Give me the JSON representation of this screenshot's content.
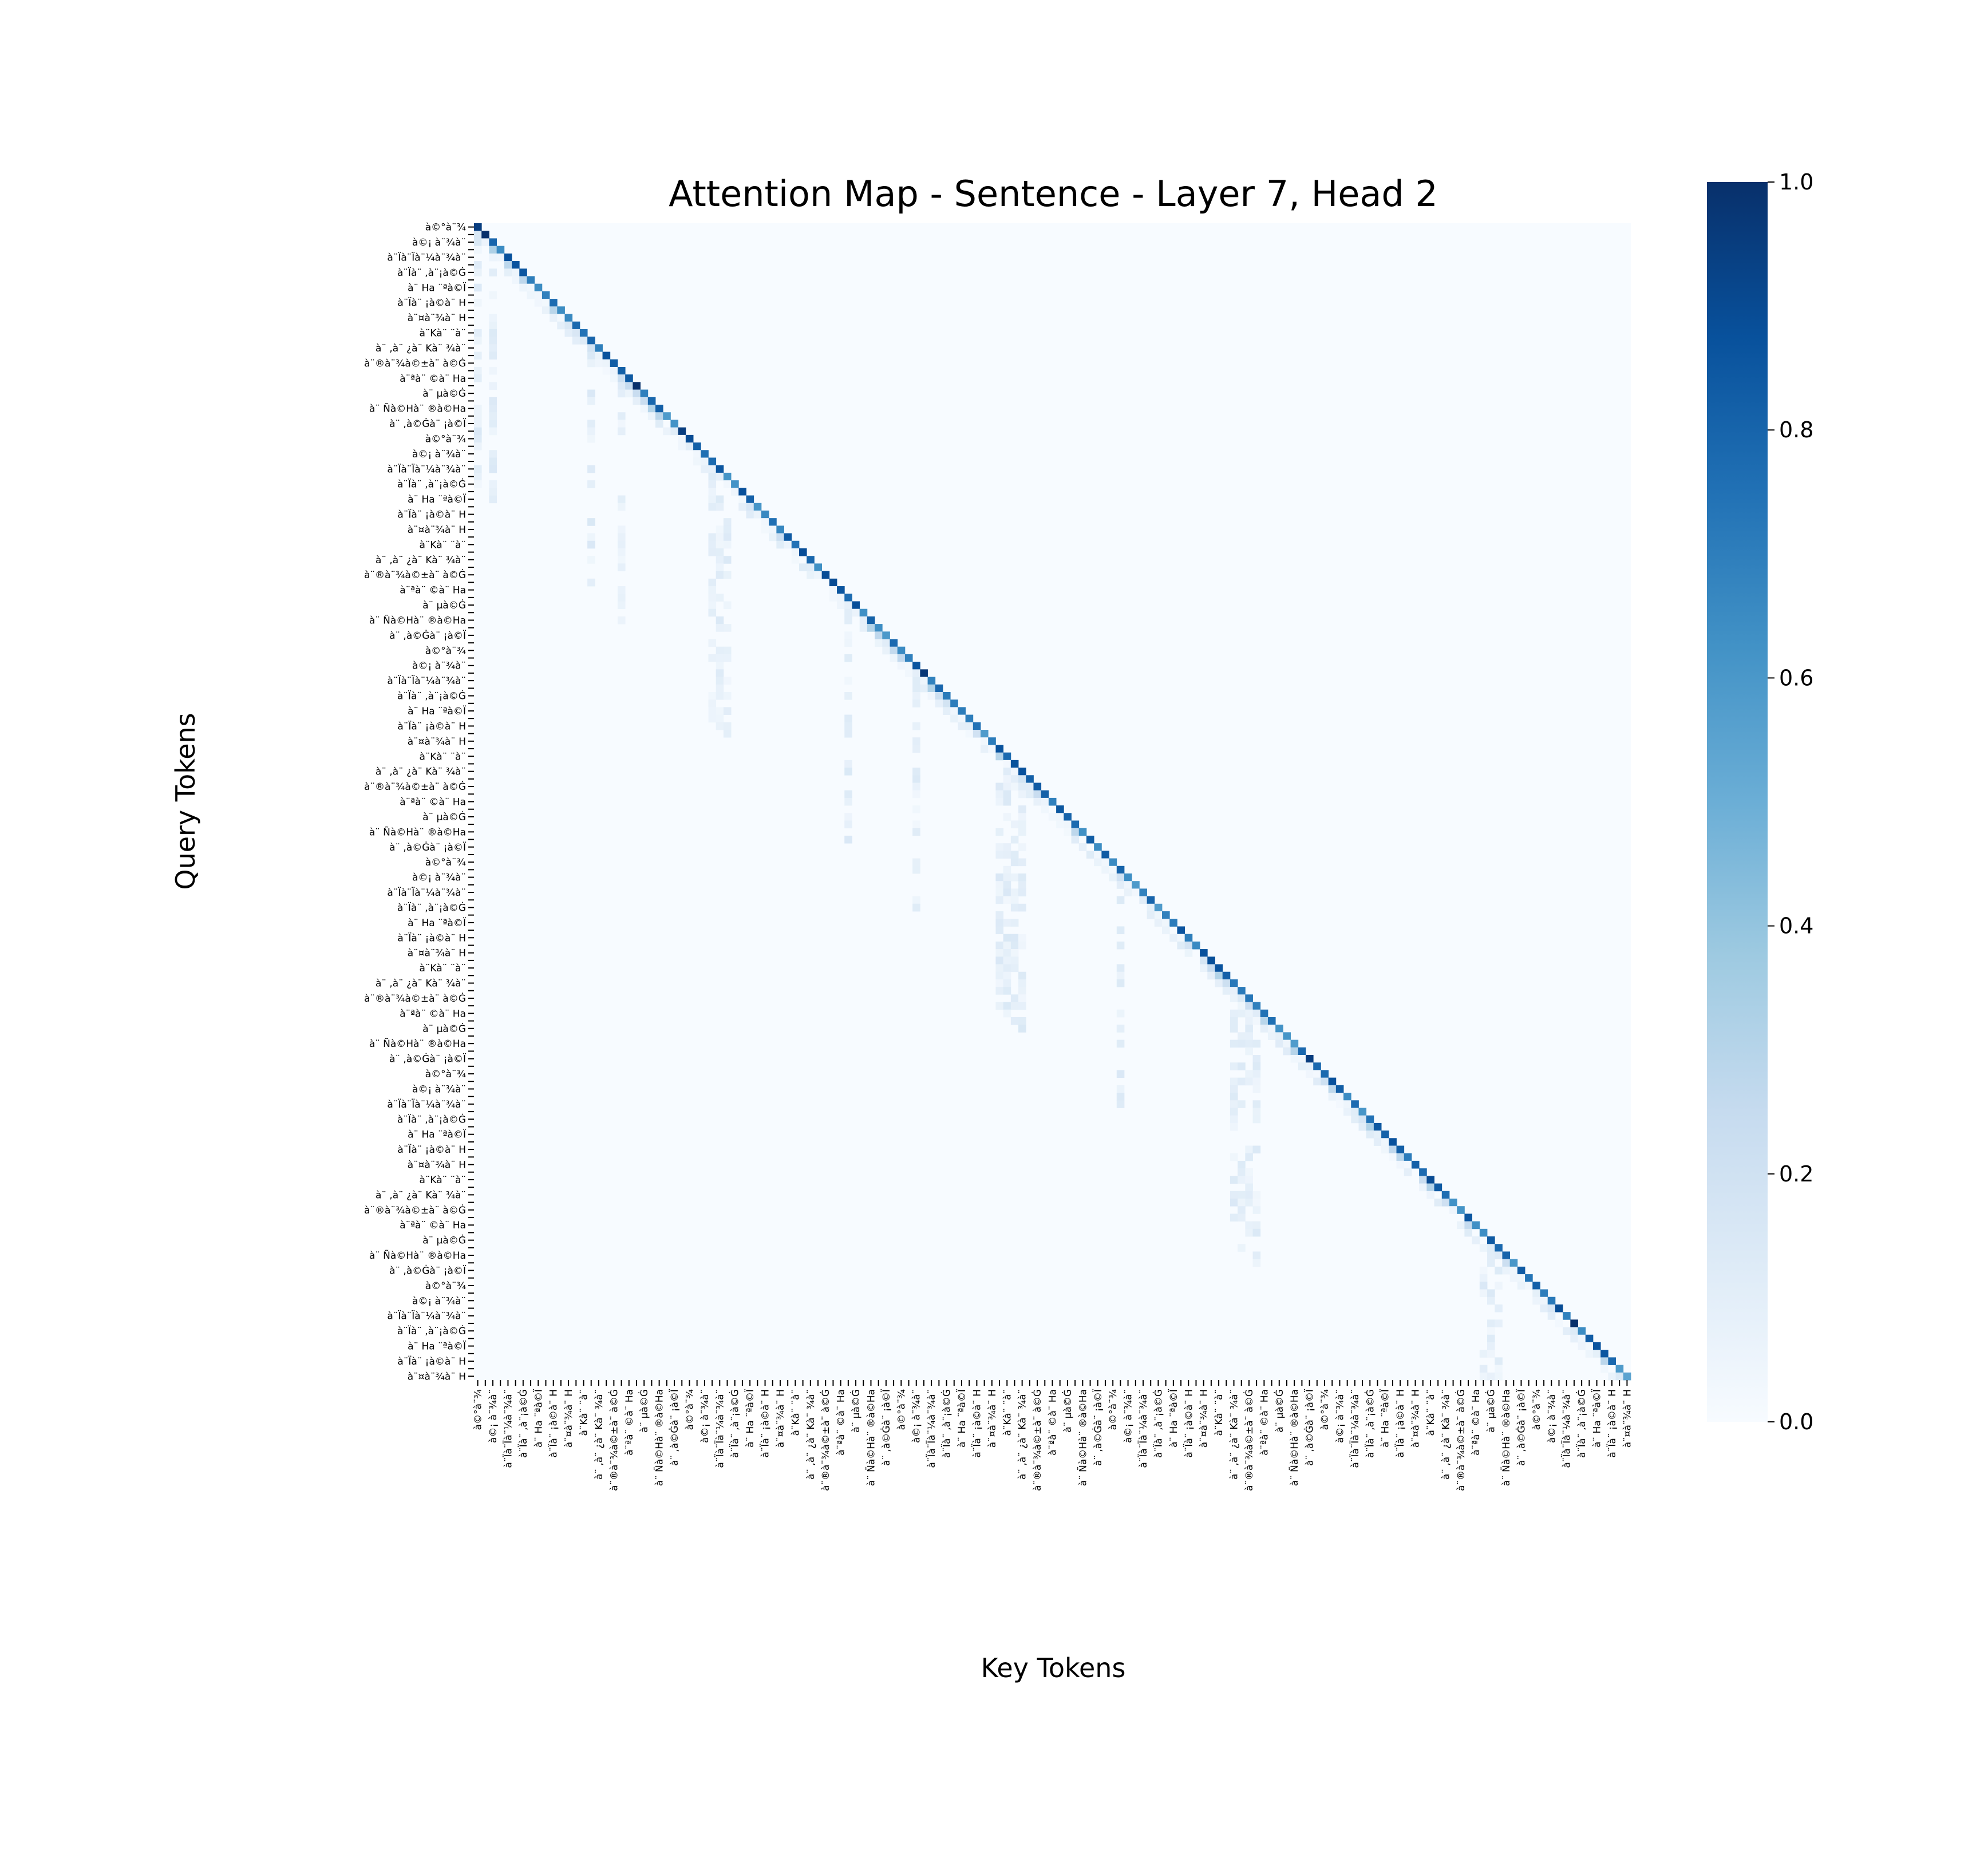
{
  "chart_data": {
    "type": "heatmap",
    "title": "Attention Map - Sentence - Layer 7, Head 2",
    "xlabel": "Key Tokens",
    "ylabel": "Query Tokens",
    "n_tokens": 153,
    "structure": "lower-triangular causal attention; strongest weights on the main diagonal; near-zero above the diagonal",
    "color_range": [
      0.0,
      1.0
    ],
    "colormap": "Blues",
    "colorbar_ticks": [
      "0.0",
      "0.2",
      "0.4",
      "0.6",
      "0.8",
      "1.0"
    ],
    "colorbar_tick_values": [
      0.0,
      0.2,
      0.4,
      0.6,
      0.8,
      1.0
    ],
    "tick_label_snippets": [
      "à©°à¨¾",
      "à¨µà¨¾ ¿à©±à¨ ",
      "à©¡ à¨¾à¨",
      "à¨ ,à©ģà¨¤à©°à¨¾",
      "à¨Ïà¨Ïà¨¼à¨¾à¨",
      "à¨ªà©¡à¨°à¨¤à©Ġà¨",
      "à¨Ïà¨ ,à¨¡à©Ġ",
      "à¨Ïà¨ ,à¨ ¡à©Ï",
      "à¨ Ha ¨ªà©Ï",
      "à¨¾à¨Ïà¨ Haà¨ à©Ġ",
      "à¨Ïà¨ ¡à©à¨ H",
      "à¨Ïà¨ Ïà¨ ¡à©Ï",
      "à¨¤à¨¾à¨ H",
      "à¨ªà¨¾à¨ ¡à©Ġ",
      "à¨Kà¨ ¨à¨",
      "à¨ ,à¨¾à¨ ¡à©Ï",
      "à¨ ,à¨ ¿à¨ Kà¨ ¾à¨",
      "à¨Ïà¨Ïà¨¼à¨¾à¨ à©Ġ",
      "à¨®à¨¾à©±à¨ à©Ġ",
      "à¨Ïà¨ ¼à¨ ¡à©Ha",
      "à¨ªà¨ ©à¨ Ha",
      "à¨Kà¨ ¡à©Ï",
      "à¨ µà©Ġ",
      "à¨ ®à¨ ¡à©Ġ",
      "à¨ Ñà©Hà¨ ®à©Ha",
      "à¨ ,à¨ ®à¨ ªà¨ ¤",
      "à¨ ,à©Ġà¨ ¡à©Ï",
      "à¨ ¾à¨ µà¨ ¾à¨ ¡à©Ï"
    ],
    "values_description": "Diagonal weights mostly 0.6-0.9 with occasional 1.0 peaks near query 1, 21, 59, 110, 145; a few off-diagonal columns (keys 0, 2, 15, 19, 31-33, 49, 58, 69-72, 85, 100-103, 133-135) receive weak 0.05-0.3 attention from later queries."
  }
}
